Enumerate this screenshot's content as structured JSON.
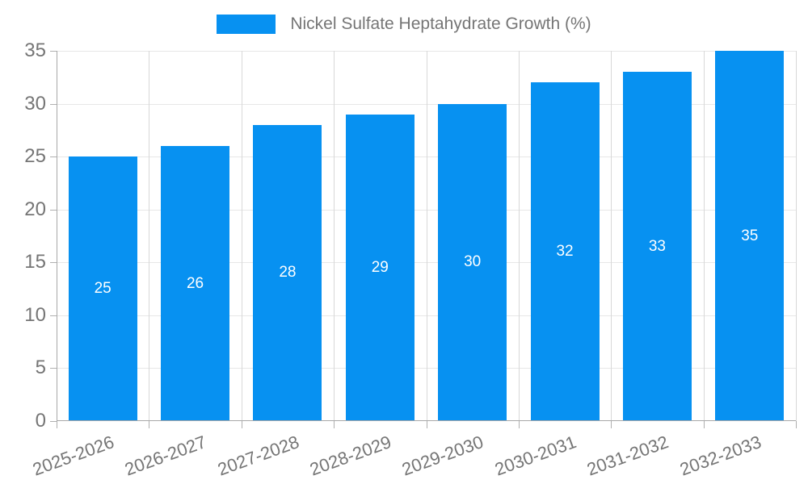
{
  "legend": {
    "label": "Nickel Sulfate Heptahydrate Growth (%)"
  },
  "chart_data": {
    "type": "bar",
    "title": "Nickel Sulfate Heptahydrate Growth (%)",
    "categories": [
      "2025-2026",
      "2026-2027",
      "2027-2028",
      "2028-2029",
      "2029-2030",
      "2030-2031",
      "2031-2032",
      "2032-2033"
    ],
    "values": [
      25,
      26,
      28,
      29,
      30,
      32,
      33,
      35
    ],
    "xlabel": "",
    "ylabel": "",
    "ylim": [
      0,
      35
    ],
    "yticks": [
      0,
      5,
      10,
      15,
      20,
      25,
      30,
      35
    ],
    "grid": true,
    "legend_position": "top",
    "bar_labels_inside": true
  },
  "colors": {
    "bar": "#0791f1",
    "bar_label": "#ffffff",
    "axis_text": "#757575",
    "h_grid": "#e7e7e7",
    "v_grid": "#d8d8d8",
    "axis_line": "#a8a8a8",
    "tick": "#b0b0b0",
    "background": "#ffffff"
  }
}
